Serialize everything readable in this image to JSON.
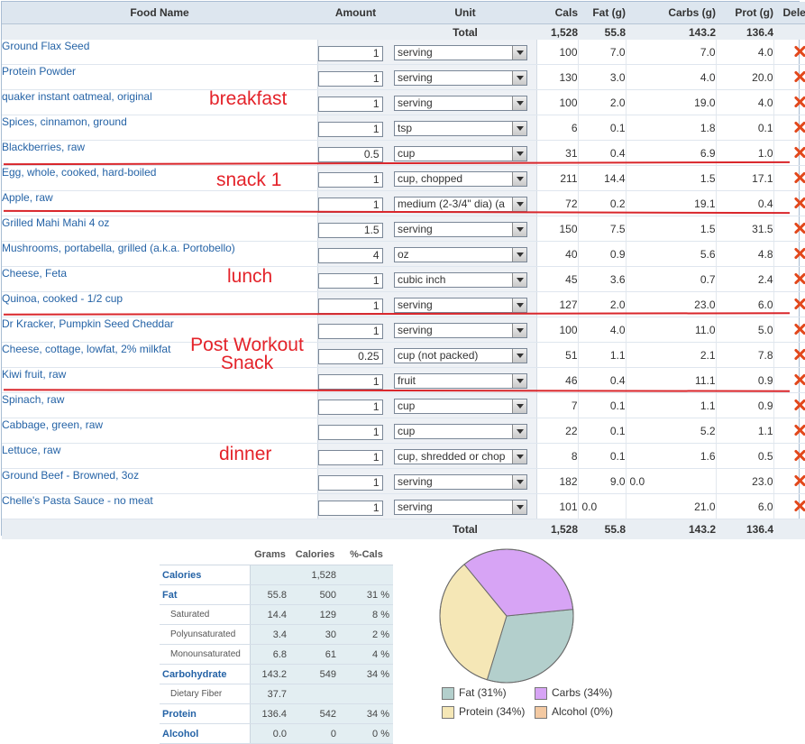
{
  "columns": {
    "food_name": "Food Name",
    "amount": "Amount",
    "unit": "Unit",
    "cals": "Cals",
    "fat": "Fat (g)",
    "carbs": "Carbs (g)",
    "prot": "Prot (g)",
    "delete": "Delete"
  },
  "totals": {
    "label": "Total",
    "cals": "1,528",
    "fat": "55.8",
    "carbs": "143.2",
    "prot": "136.4"
  },
  "foods": [
    {
      "name": "Ground Flax Seed",
      "amount": "1",
      "unit": "serving",
      "cals": "100",
      "fat": "7.0",
      "carbs": "7.0",
      "prot": "4.0"
    },
    {
      "name": "Protein Powder",
      "amount": "1",
      "unit": "serving",
      "cals": "130",
      "fat": "3.0",
      "carbs": "4.0",
      "prot": "20.0"
    },
    {
      "name": "quaker instant oatmeal, original",
      "amount": "1",
      "unit": "serving",
      "cals": "100",
      "fat": "2.0",
      "carbs": "19.0",
      "prot": "4.0"
    },
    {
      "name": "Spices, cinnamon, ground",
      "amount": "1",
      "unit": "tsp",
      "cals": "6",
      "fat": "0.1",
      "carbs": "1.8",
      "prot": "0.1"
    },
    {
      "name": "Blackberries, raw",
      "amount": "0.5",
      "unit": "cup",
      "cals": "31",
      "fat": "0.4",
      "carbs": "6.9",
      "prot": "1.0"
    },
    {
      "name": "Egg, whole, cooked, hard-boiled",
      "amount": "1",
      "unit": "cup, chopped",
      "cals": "211",
      "fat": "14.4",
      "carbs": "1.5",
      "prot": "17.1"
    },
    {
      "name": "Apple, raw",
      "amount": "1",
      "unit": "medium (2-3/4\" dia) (a",
      "cals": "72",
      "fat": "0.2",
      "carbs": "19.1",
      "prot": "0.4"
    },
    {
      "name": "Grilled Mahi Mahi 4 oz",
      "amount": "1.5",
      "unit": "serving",
      "cals": "150",
      "fat": "7.5",
      "carbs": "1.5",
      "prot": "31.5"
    },
    {
      "name": "Mushrooms, portabella, grilled (a.k.a. Portobello)",
      "amount": "4",
      "unit": "oz",
      "cals": "40",
      "fat": "0.9",
      "carbs": "5.6",
      "prot": "4.8"
    },
    {
      "name": "Cheese, Feta",
      "amount": "1",
      "unit": "cubic inch",
      "cals": "45",
      "fat": "3.6",
      "carbs": "0.7",
      "prot": "2.4"
    },
    {
      "name": "Quinoa, cooked - 1/2 cup",
      "amount": "1",
      "unit": "serving",
      "cals": "127",
      "fat": "2.0",
      "carbs": "23.0",
      "prot": "6.0"
    },
    {
      "name": "Dr Kracker, Pumpkin Seed Cheddar",
      "amount": "1",
      "unit": "serving",
      "cals": "100",
      "fat": "4.0",
      "carbs": "11.0",
      "prot": "5.0"
    },
    {
      "name": "Cheese, cottage, lowfat, 2% milkfat",
      "amount": "0.25",
      "unit": "cup (not packed)",
      "cals": "51",
      "fat": "1.1",
      "carbs": "2.1",
      "prot": "7.8"
    },
    {
      "name": "Kiwi fruit, raw",
      "amount": "1",
      "unit": "fruit",
      "cals": "46",
      "fat": "0.4",
      "carbs": "11.1",
      "prot": "0.9"
    },
    {
      "name": "Spinach, raw",
      "amount": "1",
      "unit": "cup",
      "cals": "7",
      "fat": "0.1",
      "carbs": "1.1",
      "prot": "0.9"
    },
    {
      "name": "Cabbage, green, raw",
      "amount": "1",
      "unit": "cup",
      "cals": "22",
      "fat": "0.1",
      "carbs": "5.2",
      "prot": "1.1"
    },
    {
      "name": "Lettuce, raw",
      "amount": "1",
      "unit": "cup, shredded or chop",
      "cals": "8",
      "fat": "0.1",
      "carbs": "1.6",
      "prot": "0.5"
    },
    {
      "name": "Ground Beef - Browned, 3oz",
      "amount": "1",
      "unit": "serving",
      "cals": "182",
      "fat": "9.0",
      "fat_left": "",
      "carbs": "",
      "carbs_left": "0.0",
      "prot": "23.0"
    },
    {
      "name": "Chelle's Pasta Sauce - no meat",
      "amount": "1",
      "unit": "serving",
      "cals": "101",
      "fat": "",
      "fat_left": "0.0",
      "carbs": "21.0",
      "carbs_left": "",
      "prot": "6.0"
    }
  ],
  "annotations": {
    "breakfast": "breakfast",
    "snack1": "snack 1",
    "lunch": "lunch",
    "post_workout_1": "Post Workout",
    "post_workout_2": "Snack",
    "dinner": "dinner"
  },
  "nutrition": {
    "headers": {
      "grams": "Grams",
      "calories": "Calories",
      "pct": "%-Cals"
    },
    "rows": [
      {
        "label": "Calories",
        "sub": false,
        "grams": "",
        "calories": "1,528",
        "pct": ""
      },
      {
        "label": "Fat",
        "sub": false,
        "grams": "55.8",
        "calories": "500",
        "pct": "31 %"
      },
      {
        "label": "Saturated",
        "sub": true,
        "grams": "14.4",
        "calories": "129",
        "pct": "8 %"
      },
      {
        "label": "Polyunsaturated",
        "sub": true,
        "grams": "3.4",
        "calories": "30",
        "pct": "2 %"
      },
      {
        "label": "Monounsaturated",
        "sub": true,
        "grams": "6.8",
        "calories": "61",
        "pct": "4 %"
      },
      {
        "label": "Carbohydrate",
        "sub": false,
        "grams": "143.2",
        "calories": "549",
        "pct": "34 %"
      },
      {
        "label": "Dietary Fiber",
        "sub": true,
        "grams": "37.7",
        "calories": "",
        "pct": ""
      },
      {
        "label": "Protein",
        "sub": false,
        "grams": "136.4",
        "calories": "542",
        "pct": "34 %"
      },
      {
        "label": "Alcohol",
        "sub": false,
        "grams": "0.0",
        "calories": "0",
        "pct": "0 %"
      }
    ]
  },
  "chart_data": {
    "type": "pie",
    "slices": [
      {
        "name": "Fat",
        "value": 31,
        "color": "#b3cfcc"
      },
      {
        "name": "Protein",
        "value": 34,
        "color": "#f5e7b6"
      },
      {
        "name": "Carbs",
        "value": 34,
        "color": "#d7a4f5"
      },
      {
        "name": "Alcohol",
        "value": 0,
        "color": "#f3c9a2"
      }
    ],
    "legend": [
      {
        "label": "Fat  (31%)",
        "color": "#b3cfcc"
      },
      {
        "label": "Carbs  (34%)",
        "color": "#d7a4f5"
      },
      {
        "label": "Protein  (34%)",
        "color": "#f5e7b6"
      },
      {
        "label": "Alcohol  (0%)",
        "color": "#f3c9a2"
      }
    ]
  },
  "icons": {
    "delete": "delete-x-icon",
    "dropdown": "dropdown-arrow-icon"
  }
}
